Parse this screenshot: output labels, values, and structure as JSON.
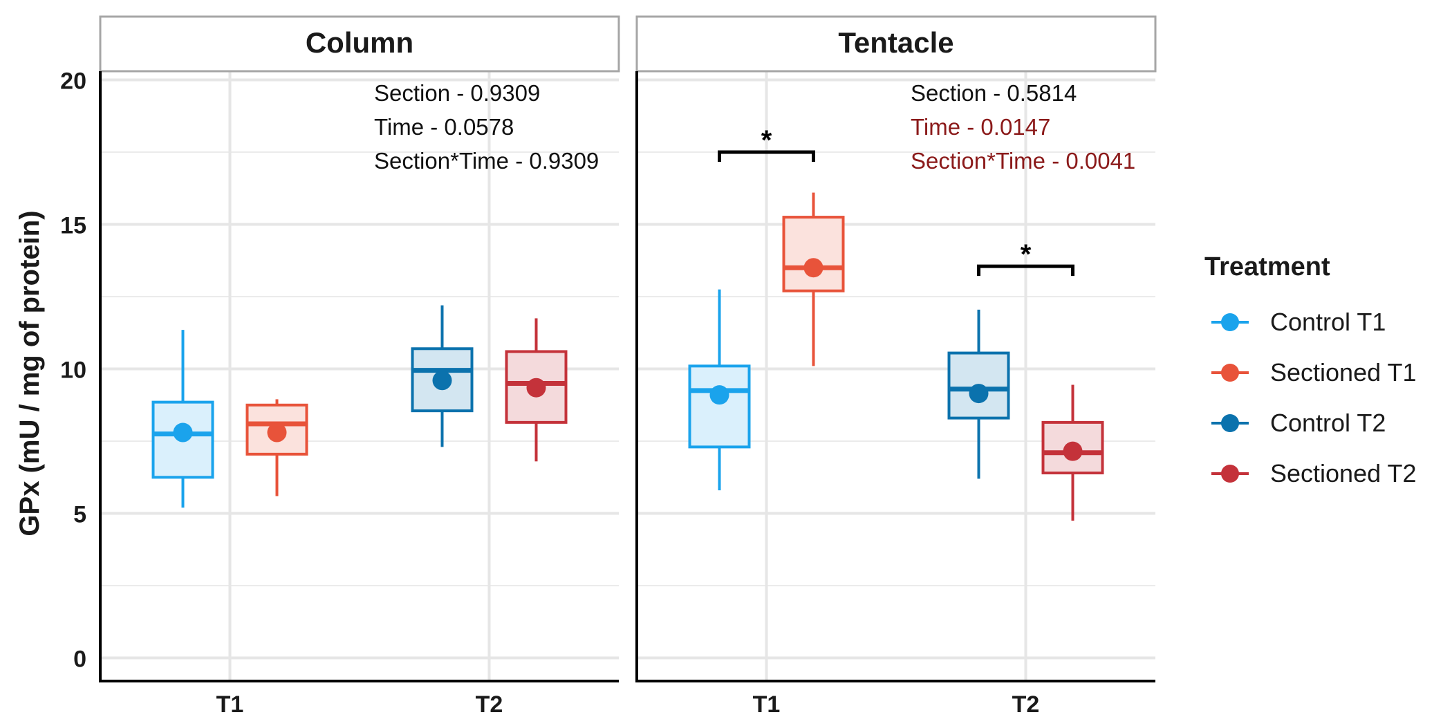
{
  "chart_data": {
    "type": "box",
    "ylabel": "GPx (mU / mg  of protein)",
    "ylim": [
      -0.8,
      20.3
    ],
    "yticks": [
      0,
      5,
      10,
      15,
      20
    ],
    "x_categories": [
      "T1",
      "T2"
    ],
    "grid": true,
    "legend": {
      "title": "Treatment",
      "position": "right",
      "entries": [
        {
          "name": "Control T1",
          "color": "#1AA3EC"
        },
        {
          "name": "Sectioned T1",
          "color": "#E8533A"
        },
        {
          "name": "Control T2",
          "color": "#0B72AD"
        },
        {
          "name": "Sectioned T2",
          "color": "#C4323A"
        }
      ]
    },
    "colors": {
      "Control T1": {
        "stroke": "#1AA3EC",
        "fill": "#DAF0FC"
      },
      "Sectioned T1": {
        "stroke": "#E8533A",
        "fill": "#FBE2DD"
      },
      "Control T2": {
        "stroke": "#0B72AD",
        "fill": "#D3E6F1"
      },
      "Sectioned T2": {
        "stroke": "#C4323A",
        "fill": "#F4DADC"
      },
      "significant_text": "#8B1A1A"
    },
    "panels": [
      {
        "title": "Column",
        "stats": [
          {
            "text": "Section - 0.9309",
            "significant": false
          },
          {
            "text": "Time - 0.0578",
            "significant": false
          },
          {
            "text": "Section*Time - 0.9309",
            "significant": false
          }
        ],
        "boxes": [
          {
            "group": "Control T1",
            "time": "T1",
            "offset": -1,
            "min": 5.2,
            "q1": 6.25,
            "median": 7.75,
            "q3": 8.85,
            "max": 11.35,
            "mean": 7.8
          },
          {
            "group": "Sectioned T1",
            "time": "T1",
            "offset": 1,
            "min": 5.6,
            "q1": 7.05,
            "median": 8.1,
            "q3": 8.75,
            "max": 8.95,
            "mean": 7.8
          },
          {
            "group": "Control T2",
            "time": "T2",
            "offset": -1,
            "min": 7.3,
            "q1": 8.55,
            "median": 9.95,
            "q3": 10.7,
            "max": 12.2,
            "mean": 9.6
          },
          {
            "group": "Sectioned T2",
            "time": "T2",
            "offset": 1,
            "min": 6.8,
            "q1": 8.15,
            "median": 9.5,
            "q3": 10.6,
            "max": 11.75,
            "mean": 9.35
          }
        ],
        "significance": []
      },
      {
        "title": "Tentacle",
        "stats": [
          {
            "text": "Section - 0.5814",
            "significant": false
          },
          {
            "text": "Time - 0.0147",
            "significant": true
          },
          {
            "text": "Section*Time - 0.0041",
            "significant": true
          }
        ],
        "boxes": [
          {
            "group": "Control T1",
            "time": "T1",
            "offset": -1,
            "min": 5.8,
            "q1": 7.3,
            "median": 9.25,
            "q3": 10.1,
            "max": 12.75,
            "mean": 9.1
          },
          {
            "group": "Sectioned T1",
            "time": "T1",
            "offset": 1,
            "min": 10.1,
            "q1": 12.7,
            "median": 13.5,
            "q3": 15.25,
            "max": 16.1,
            "mean": 13.5
          },
          {
            "group": "Control T2",
            "time": "T2",
            "offset": -1,
            "min": 6.2,
            "q1": 8.3,
            "median": 9.3,
            "q3": 10.55,
            "max": 12.05,
            "mean": 9.15
          },
          {
            "group": "Sectioned T2",
            "time": "T2",
            "offset": 1,
            "min": 4.75,
            "q1": 6.4,
            "median": 7.1,
            "q3": 8.15,
            "max": 9.45,
            "mean": 7.15
          }
        ],
        "significance": [
          {
            "time": "T1",
            "y": 17.5,
            "label": "*"
          },
          {
            "time": "T2",
            "y": 13.55,
            "label": "*"
          }
        ]
      }
    ]
  }
}
